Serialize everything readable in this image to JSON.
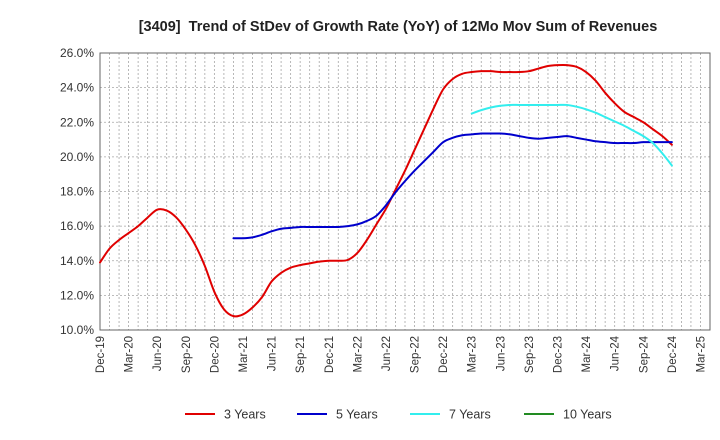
{
  "chart_data": {
    "type": "line",
    "title": "[3409]  Trend of StDev of Growth Rate (YoY) of 12Mo Mov Sum of Revenues",
    "xlabel": "",
    "ylabel": "",
    "grid": true,
    "legend_position": "bottom",
    "x_axis": {
      "range_months": [
        0,
        64
      ],
      "tick_step_months": 3,
      "tick_labels": [
        "Dec-19",
        "Mar-20",
        "Jun-20",
        "Sep-20",
        "Dec-20",
        "Mar-21",
        "Jun-21",
        "Sep-21",
        "Dec-21",
        "Mar-22",
        "Jun-22",
        "Sep-22",
        "Dec-22",
        "Mar-23",
        "Jun-23",
        "Sep-23",
        "Dec-23",
        "Mar-24",
        "Jun-24",
        "Sep-24",
        "Dec-24",
        "Mar-25"
      ]
    },
    "y_axis": {
      "range": [
        10,
        26
      ],
      "ticks": [
        10,
        12,
        14,
        16,
        18,
        20,
        22,
        24,
        26
      ],
      "tick_labels": [
        "10.0%",
        "12.0%",
        "14.0%",
        "16.0%",
        "18.0%",
        "20.0%",
        "22.0%",
        "24.0%",
        "26.0%"
      ]
    },
    "series": [
      {
        "name": "3 Years",
        "color": "#e00000",
        "start_offset_months": 0,
        "values": [
          13.9,
          14.7,
          15.2,
          15.6,
          16.0,
          16.5,
          16.95,
          16.9,
          16.5,
          15.8,
          14.9,
          13.7,
          12.2,
          11.2,
          10.8,
          10.9,
          11.3,
          11.9,
          12.8,
          13.3,
          13.6,
          13.75,
          13.85,
          13.95,
          14.0,
          14.0,
          14.05,
          14.45,
          15.2,
          16.1,
          17.0,
          18.1,
          19.2,
          20.4,
          21.6,
          22.8,
          23.9,
          24.5,
          24.8,
          24.9,
          24.95,
          24.95,
          24.9,
          24.9,
          24.9,
          24.95,
          25.1,
          25.25,
          25.3,
          25.3,
          25.2,
          24.9,
          24.4,
          23.7,
          23.1,
          22.6,
          22.3,
          22.0,
          21.6,
          21.2,
          20.7
        ]
      },
      {
        "name": "5 Years",
        "color": "#0000cc",
        "start_offset_months": 14,
        "values": [
          15.3,
          15.3,
          15.35,
          15.5,
          15.7,
          15.85,
          15.9,
          15.95,
          15.95,
          15.95,
          15.95,
          15.95,
          16.0,
          16.1,
          16.3,
          16.6,
          17.2,
          17.95,
          18.6,
          19.2,
          19.75,
          20.3,
          20.85,
          21.1,
          21.25,
          21.3,
          21.35,
          21.35,
          21.35,
          21.3,
          21.2,
          21.1,
          21.05,
          21.1,
          21.15,
          21.2,
          21.1,
          21.0,
          20.9,
          20.85,
          20.8,
          20.8,
          20.8,
          20.85,
          20.85,
          20.85,
          20.85
        ]
      },
      {
        "name": "7 Years",
        "color": "#33eeee",
        "start_offset_months": 39,
        "values": [
          22.5,
          22.7,
          22.85,
          22.95,
          23.0,
          23.0,
          23.0,
          23.0,
          23.0,
          23.0,
          23.0,
          22.9,
          22.75,
          22.55,
          22.3,
          22.05,
          21.8,
          21.5,
          21.2,
          20.8,
          20.2,
          19.5
        ]
      },
      {
        "name": "10 Years",
        "color": "#228b22",
        "start_offset_months": 0,
        "values": []
      }
    ]
  }
}
